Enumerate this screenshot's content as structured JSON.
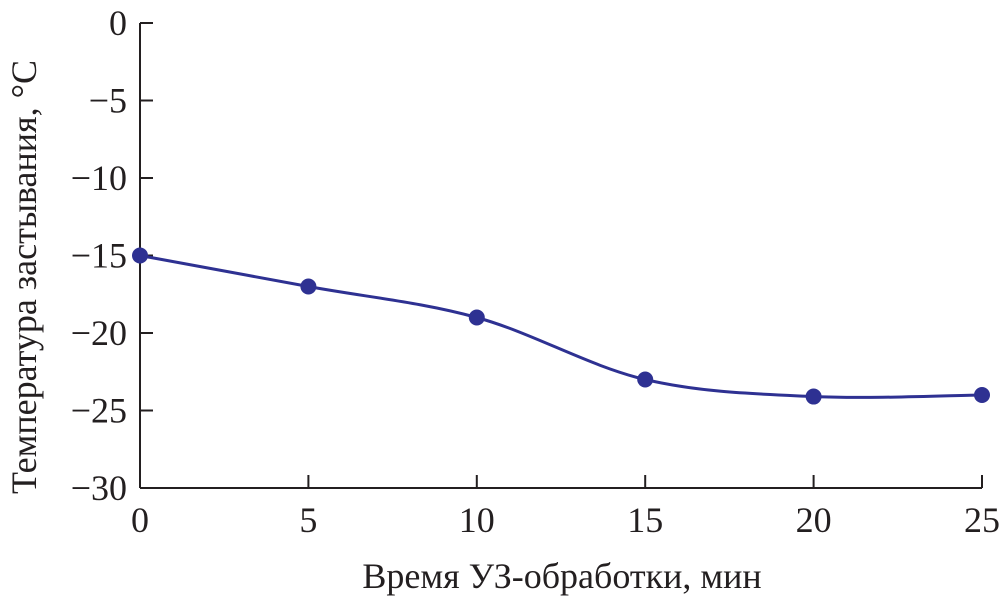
{
  "chart_data": {
    "type": "line",
    "xlabel": "Время УЗ-обработки, мин",
    "ylabel": "Температура застывания, °C",
    "xlim": [
      0,
      25
    ],
    "ylim": [
      -30,
      0
    ],
    "xticks": [
      0,
      5,
      10,
      15,
      20,
      25
    ],
    "yticks": [
      0,
      -5,
      -10,
      -15,
      -20,
      -25,
      -30
    ],
    "xtick_labels": [
      "0",
      "5",
      "10",
      "15",
      "20",
      "25"
    ],
    "ytick_labels": [
      "0",
      "−5",
      "−10",
      "−15",
      "−20",
      "−25",
      "−30"
    ],
    "grid": false,
    "line_color": "#2e3192",
    "series": [
      {
        "x": [
          0,
          5,
          10,
          15,
          20,
          25
        ],
        "values": [
          -15,
          -17,
          -19,
          -23,
          -24.1,
          -24
        ]
      }
    ]
  }
}
